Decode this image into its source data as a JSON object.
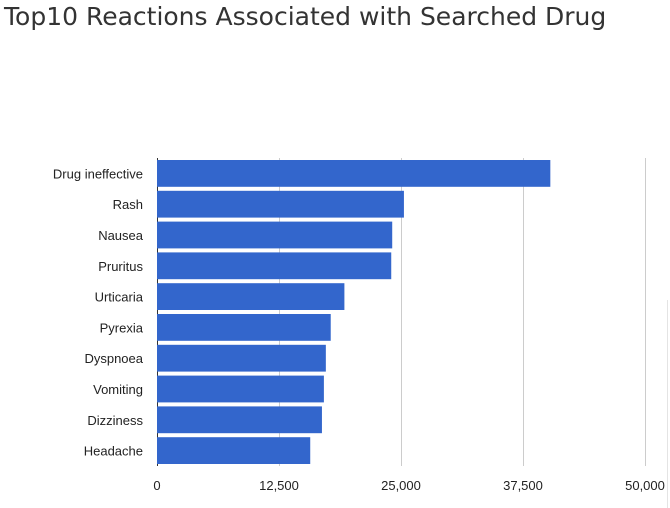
{
  "title": "Top10 Reactions Associated with Searched Drug",
  "colors": {
    "bar": "#3366cc",
    "grid": "#cccccc",
    "text": "#222222",
    "title": "#333333"
  },
  "chart_data": {
    "type": "bar",
    "orientation": "horizontal",
    "title": "Top10 Reactions Associated with Searched Drug",
    "xlabel": "",
    "ylabel": "",
    "categories": [
      "Drug ineffective",
      "Rash",
      "Nausea",
      "Pruritus",
      "Urticaria",
      "Pyrexia",
      "Dyspnoea",
      "Vomiting",
      "Dizziness",
      "Headache"
    ],
    "values": [
      40300,
      25300,
      24100,
      24000,
      19200,
      17800,
      17300,
      17100,
      16900,
      15700
    ],
    "xlim": [
      0,
      50000
    ],
    "x_ticks": [
      0,
      12500,
      25000,
      37500,
      50000
    ],
    "x_tick_labels": [
      "0",
      "12,500",
      "25,000",
      "37,500",
      "50,000"
    ],
    "grid": true,
    "legend": "none"
  }
}
